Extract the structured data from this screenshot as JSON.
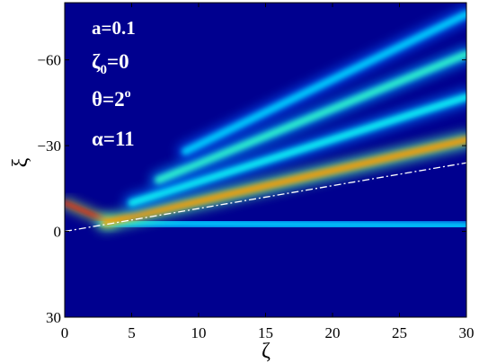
{
  "chart_data": {
    "type": "heatmap",
    "title": "",
    "xlabel": "ζ",
    "ylabel": "ξ",
    "xlim": [
      0,
      30
    ],
    "ylim": [
      30,
      -80
    ],
    "x_ticks": [
      "0",
      "5",
      "10",
      "15",
      "20",
      "25",
      "30"
    ],
    "x_tick_values": [
      0,
      5,
      10,
      15,
      20,
      25,
      30
    ],
    "y_ticks": [
      "−60",
      "−30",
      "0",
      "30"
    ],
    "y_tick_values": [
      -60,
      -30,
      0,
      30
    ],
    "colormap": "jet",
    "background_color": "#00008f",
    "grid": false,
    "annotations": {
      "a": {
        "name": "a",
        "value": "=0.1"
      },
      "zeta0": {
        "name": "ζ",
        "sub": "0",
        "value": "=0"
      },
      "theta": {
        "name": "θ",
        "value": "=2",
        "sup": "o"
      },
      "alpha": {
        "name": "α",
        "value": "=11"
      }
    },
    "guide_line": {
      "style": "dash-dot",
      "color": "#ffffff",
      "from": [
        0,
        0
      ],
      "to": [
        30,
        -24
      ]
    },
    "beams": [
      {
        "kind": "source",
        "x": [
          0,
          3.5
        ],
        "y": [
          -10,
          -3
        ],
        "peak": 1.0
      },
      {
        "kind": "straight",
        "x": [
          3,
          30
        ],
        "y": [
          -3,
          -2
        ],
        "peak": 0.4
      },
      {
        "kind": "deflected",
        "x": [
          3,
          30
        ],
        "y": [
          -3,
          -32
        ],
        "peak": 0.85
      },
      {
        "kind": "deflected",
        "x": [
          5,
          30
        ],
        "y": [
          -10,
          -47
        ],
        "peak": 0.45
      },
      {
        "kind": "deflected",
        "x": [
          7,
          30
        ],
        "y": [
          -18,
          -62
        ],
        "peak": 0.5
      },
      {
        "kind": "deflected",
        "x": [
          9,
          30
        ],
        "y": [
          -28,
          -76
        ],
        "peak": 0.4
      }
    ]
  }
}
